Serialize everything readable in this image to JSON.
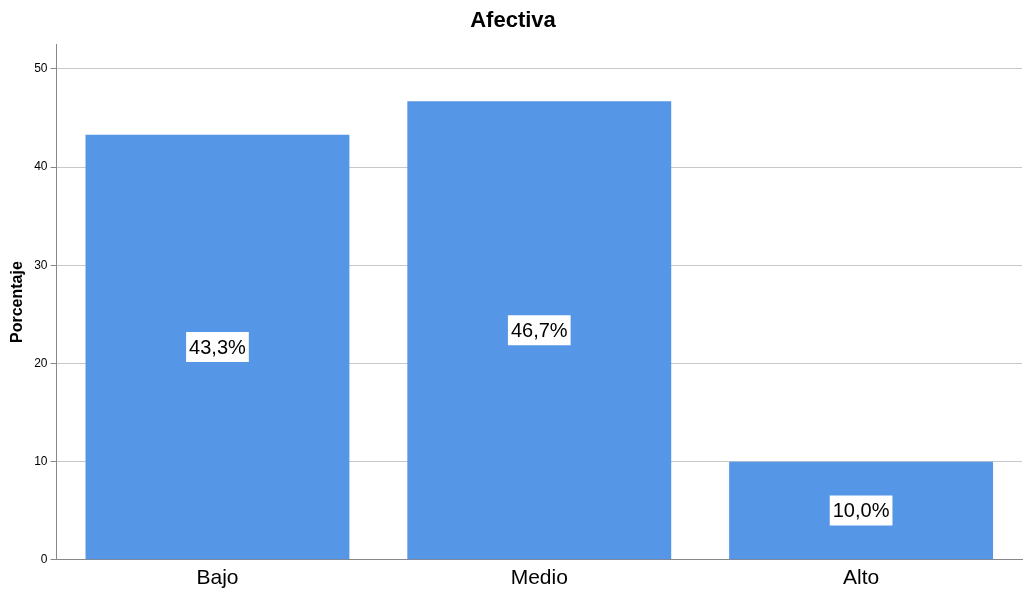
{
  "chart_data": {
    "type": "bar",
    "title": "Afectiva",
    "ylabel": "Porcentaje",
    "categories": [
      "Bajo",
      "Medio",
      "Alto"
    ],
    "values": [
      43.3,
      46.7,
      10.0
    ],
    "value_labels": [
      "43,3%",
      "46,7%",
      "10,0%"
    ],
    "color": "#5596e6",
    "ylim": [
      0,
      52.5
    ],
    "yticks": [
      0,
      10,
      20,
      30,
      40,
      50
    ],
    "grid": "y",
    "legend": false
  }
}
